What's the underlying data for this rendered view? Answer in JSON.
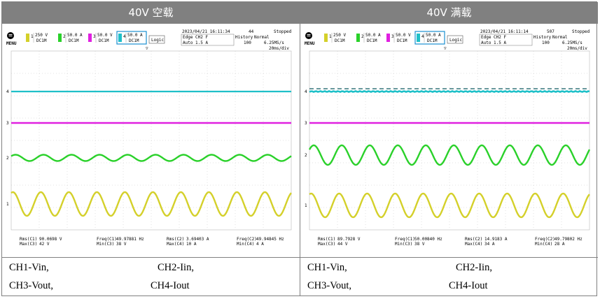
{
  "colors": {
    "ch1": "#d4d02a",
    "ch2": "#2ad12a",
    "ch3": "#e020e0",
    "ch4": "#1fc0c8",
    "header_bg": "#808080",
    "grid": "#b8b8b8"
  },
  "panels": [
    {
      "title": "40V 空载",
      "scope": {
        "menu_label": "MENU",
        "ch_settings": [
          {
            "num": "1",
            "scale": "250 V",
            "sub": "DC1M"
          },
          {
            "num": "2",
            "scale": "50.0 A",
            "sub": "DC1M"
          },
          {
            "num": "3",
            "scale": "50.0 V",
            "sub": "DC1M"
          },
          {
            "num": "4",
            "scale": "50.0 A",
            "sub": "DC1M"
          }
        ],
        "logic_label": "Logic",
        "datetime": "2023/04/21 16:11:34",
        "count": "44",
        "state": "Stopped",
        "trigger": "Edge CH2 F",
        "trigger_mode": "Auto 1.5 A",
        "history_label": "History",
        "history_value": "100",
        "acq_mode": "Normal",
        "sample_rate": "6.25MS/s",
        "timebase": "20ms/div",
        "measurements": [
          {
            "label1": "Rms(C1)",
            "value1": "90.0698 V",
            "label2": "Max(C3)",
            "value2": "42 V"
          },
          {
            "label1": "Freq(C1)",
            "value1": "49.97881 Hz",
            "label2": "Min(C3)",
            "value2": "38 V"
          },
          {
            "label1": "Rms(C2)",
            "value1": "3.69403 A",
            "label2": "Max(C4)",
            "value2": "10 A"
          },
          {
            "label1": "Freq(C2)",
            "value1": "49.94845 Hz",
            "label2": "Min(C4)",
            "value2": "4 A"
          }
        ]
      },
      "caption_row1": [
        "CH1-Vin,",
        "CH2-Iin,"
      ],
      "caption_row2": [
        "CH3-Vout,",
        "CH4-Iout"
      ]
    },
    {
      "title": "40V 满载",
      "scope": {
        "menu_label": "MENU",
        "ch_settings": [
          {
            "num": "1",
            "scale": "250 V",
            "sub": "DC1M"
          },
          {
            "num": "2",
            "scale": "50.0 A",
            "sub": "DC1M"
          },
          {
            "num": "3",
            "scale": "50.0 V",
            "sub": "DC1M"
          },
          {
            "num": "4",
            "scale": "50.0 A",
            "sub": "DC1M"
          }
        ],
        "logic_label": "Logic",
        "datetime": "2023/04/21 16:11:14",
        "count": "507",
        "state": "Stopped",
        "trigger": "Edge CH2 F",
        "trigger_mode": "Auto 1.5 A",
        "history_label": "History",
        "history_value": "100",
        "acq_mode": "Normal",
        "sample_rate": "6.25MS/s",
        "timebase": "20ms/div",
        "measurements": [
          {
            "label1": "Rms(C1)",
            "value1": "89.7928 V",
            "label2": "Max(C3)",
            "value2": "44 V"
          },
          {
            "label1": "Freq(C1)",
            "value1": "50.00840 Hz",
            "label2": "Min(C3)",
            "value2": "38 V"
          },
          {
            "label1": "Rms(C2)",
            "value1": "14.9183 A",
            "label2": "Max(C4)",
            "value2": "34 A"
          },
          {
            "label1": "Freq(C2)",
            "value1": "49.79802 Hz",
            "label2": "Min(C4)",
            "value2": "28 A"
          }
        ]
      },
      "caption_row1": [
        "CH1-Vin,",
        "CH2-Iin,"
      ],
      "caption_row2": [
        "CH3-Vout,",
        "CH4-Iout"
      ]
    }
  ]
}
